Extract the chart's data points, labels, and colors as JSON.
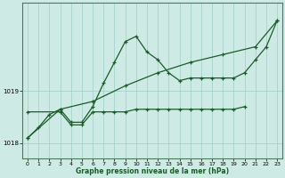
{
  "title": "Graphe pression niveau de la mer (hPa)",
  "bg_color": "#ceeae4",
  "grid_color": "#a0cec8",
  "line_color": "#1a5c2a",
  "xlim": [
    -0.5,
    23.5
  ],
  "ylim": [
    1017.7,
    1020.7
  ],
  "yticks": [
    1018,
    1019
  ],
  "xticks": [
    0,
    1,
    2,
    3,
    4,
    5,
    6,
    7,
    8,
    9,
    10,
    11,
    12,
    13,
    14,
    15,
    16,
    17,
    18,
    19,
    20,
    21,
    22,
    23
  ],
  "line1_x": [
    0,
    1,
    2,
    3,
    4,
    5,
    6,
    7,
    8,
    9,
    10,
    11,
    12,
    13,
    14,
    15,
    16,
    17,
    18,
    19,
    20,
    21,
    22,
    23
  ],
  "line1_y": [
    1018.1,
    1018.3,
    1018.55,
    1018.65,
    1018.4,
    1018.4,
    1018.7,
    1019.15,
    1019.55,
    1019.95,
    1020.05,
    1019.75,
    1019.6,
    1019.35,
    1019.2,
    1019.25,
    1019.25,
    1019.25,
    1019.25,
    1019.25,
    1019.35,
    1019.6,
    1019.85,
    1020.35
  ],
  "line2_x": [
    0,
    3,
    6,
    9,
    12,
    15,
    18,
    21,
    23
  ],
  "line2_y": [
    1018.1,
    1018.65,
    1018.8,
    1019.1,
    1019.35,
    1019.55,
    1019.7,
    1019.85,
    1020.35
  ],
  "line3_x": [
    0,
    3,
    4,
    5,
    6,
    7,
    8,
    9,
    10,
    11,
    12,
    13,
    14,
    15,
    16,
    17,
    18,
    19,
    20
  ],
  "line3_y": [
    1018.6,
    1018.6,
    1018.35,
    1018.35,
    1018.6,
    1018.6,
    1018.6,
    1018.6,
    1018.65,
    1018.65,
    1018.65,
    1018.65,
    1018.65,
    1018.65,
    1018.65,
    1018.65,
    1018.65,
    1018.65,
    1018.7
  ]
}
